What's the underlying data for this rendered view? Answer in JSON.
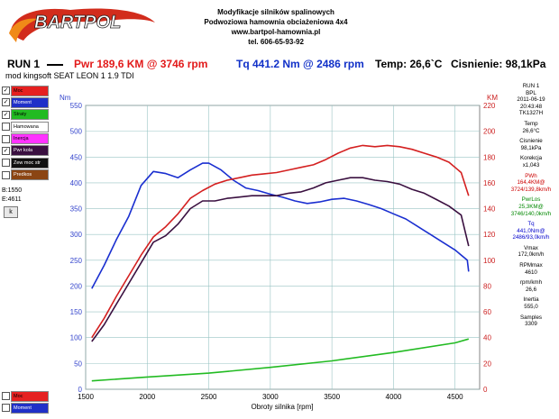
{
  "header": {
    "logo_text": "BARTPOL",
    "line1": "Modyfikacje silników spalinowych",
    "line2": "Podwoziowa hamownia obciażeniowa 4x4",
    "line3": "www.bartpol-hamownia.pl",
    "line4": "tel. 606-65-93-92"
  },
  "summary": {
    "run_label": "RUN 1",
    "pwr": "Pwr  189,6 KM @ 3746 rpm",
    "tq": "Tq 441.2 Nm @ 2486 rpm",
    "temp": "Temp: 26,6`C",
    "pressure": "Cisnienie: 98,1kPa"
  },
  "model_label": "mod kingsoft SEAT LEON 1 1.9 TDI",
  "legend": [
    {
      "label": "Moc",
      "checked": "✓",
      "color": "#e52020"
    },
    {
      "label": "Moment",
      "checked": "✓",
      "color": "#2030c8"
    },
    {
      "label": "Straty",
      "checked": "✓",
      "color": "#22bb22"
    },
    {
      "label": "Hamowana",
      "checked": "",
      "color": "#ffffff"
    },
    {
      "label": "Inercja",
      "checked": "",
      "color": "#ff33ff"
    },
    {
      "label": "Pwr kola",
      "checked": "✓",
      "color": "#3a1040"
    },
    {
      "label": "Zew moc str",
      "checked": "",
      "color": "#111111"
    },
    {
      "label": "Predkos",
      "checked": "",
      "color": "#8b4513"
    }
  ],
  "range": {
    "b": "B:1550",
    "e": "E:4611",
    "button": "k"
  },
  "bottom_legend": [
    {
      "label": "Moc",
      "checked": "",
      "color": "#e52020"
    },
    {
      "label": "Moment",
      "checked": "",
      "color": "#2030c8"
    }
  ],
  "side_panel": [
    {
      "lines": [
        "RUN 1",
        "BPL",
        "2011-06-19",
        "20:43:48",
        "TK1327H"
      ],
      "color": "#000000"
    },
    {
      "lines": [
        "Temp",
        "26,6°C"
      ],
      "color": "#000000"
    },
    {
      "lines": [
        "Cisnienie",
        "98,1kPa"
      ],
      "color": "#000000"
    },
    {
      "lines": [
        "Korekcja",
        "x1,043"
      ],
      "color": "#000000"
    },
    {
      "lines": [
        "PWh",
        "164,4KM@",
        "3724/139,8km/h"
      ],
      "color": "#cc0000"
    },
    {
      "lines": [
        "PwrLos",
        "25,3KM@",
        "3746/140,0km/h"
      ],
      "color": "#008800"
    },
    {
      "lines": [
        "Tq",
        "441,0Nm@",
        "2486/93,0km/h"
      ],
      "color": "#0000cc"
    },
    {
      "lines": [
        "Vmax",
        "172,0km/h"
      ],
      "color": "#000000"
    },
    {
      "lines": [
        "RPMmax",
        "4610"
      ],
      "color": "#000000"
    },
    {
      "lines": [
        "rpm/kmh",
        "26,6"
      ],
      "color": "#000000"
    },
    {
      "lines": [
        "Inertia",
        "555,0"
      ],
      "color": "#000000"
    },
    {
      "lines": [
        "Samples",
        "3309"
      ],
      "color": "#000000"
    }
  ],
  "colors": {
    "grid": "#99c4c4",
    "left_axis": "#3344cc",
    "right_axis": "#cc2222",
    "background": "#ffffff"
  },
  "chart_data": {
    "type": "line",
    "xlabel": "Obroty silnika [rpm]",
    "ylabel_left": "Nm",
    "ylabel_right": "KM",
    "xlim": [
      1500,
      4700
    ],
    "ylim_left": [
      0,
      550
    ],
    "ylim_right": [
      0,
      220
    ],
    "x_ticks": [
      1500,
      2000,
      2500,
      3000,
      3500,
      4000,
      4500
    ],
    "y_ticks_left": [
      0,
      50,
      100,
      150,
      200,
      250,
      300,
      350,
      400,
      450,
      500,
      550
    ],
    "y_ticks_right": [
      0,
      20,
      40,
      60,
      80,
      100,
      120,
      140,
      160,
      180,
      200,
      220
    ],
    "grid": true,
    "series": [
      {
        "axis": "left",
        "color": "#1a2fd0",
        "x": [
          1550,
          1650,
          1750,
          1850,
          1950,
          2050,
          2150,
          2250,
          2350,
          2450,
          2500,
          2600,
          2700,
          2800,
          2900,
          3000,
          3100,
          3200,
          3300,
          3400,
          3500,
          3600,
          3700,
          3800,
          3900,
          4000,
          4100,
          4200,
          4300,
          4400,
          4500,
          4600,
          4611
        ],
        "y": [
          195,
          240,
          290,
          335,
          395,
          422,
          418,
          410,
          425,
          438,
          438,
          425,
          405,
          390,
          385,
          378,
          372,
          365,
          360,
          363,
          368,
          370,
          365,
          358,
          350,
          340,
          330,
          315,
          300,
          285,
          270,
          250,
          228
        ]
      },
      {
        "axis": "right",
        "color": "#d42020",
        "x": [
          1550,
          1650,
          1750,
          1850,
          1950,
          2050,
          2150,
          2250,
          2350,
          2450,
          2550,
          2650,
          2750,
          2850,
          2950,
          3050,
          3150,
          3250,
          3350,
          3450,
          3550,
          3650,
          3750,
          3850,
          3950,
          4050,
          4150,
          4250,
          4350,
          4450,
          4550,
          4611
        ],
        "y": [
          40,
          55,
          72,
          88,
          104,
          118,
          126,
          136,
          148,
          154,
          159,
          162,
          164,
          166,
          167,
          168,
          170,
          172,
          174,
          178,
          183,
          187,
          189,
          188,
          189,
          188,
          186,
          183,
          180,
          176,
          168,
          150
        ]
      },
      {
        "axis": "right",
        "color": "#3a1040",
        "x": [
          1550,
          1650,
          1750,
          1850,
          1950,
          2050,
          2150,
          2250,
          2350,
          2450,
          2550,
          2650,
          2750,
          2850,
          2950,
          3050,
          3150,
          3250,
          3350,
          3450,
          3550,
          3650,
          3750,
          3850,
          3950,
          4050,
          4150,
          4250,
          4350,
          4450,
          4550,
          4611
        ],
        "y": [
          37,
          50,
          66,
          82,
          98,
          114,
          119,
          128,
          140,
          146,
          146,
          148,
          149,
          150,
          150,
          150,
          152,
          153,
          156,
          160,
          162,
          164,
          164,
          162,
          161,
          159,
          155,
          152,
          147,
          142,
          135,
          111
        ]
      },
      {
        "axis": "right",
        "color": "#22bb22",
        "x": [
          1550,
          2000,
          2500,
          3000,
          3500,
          4000,
          4500,
          4611
        ],
        "y": [
          6.5,
          9.5,
          12.5,
          17,
          22,
          28.5,
          36,
          39
        ]
      }
    ]
  }
}
